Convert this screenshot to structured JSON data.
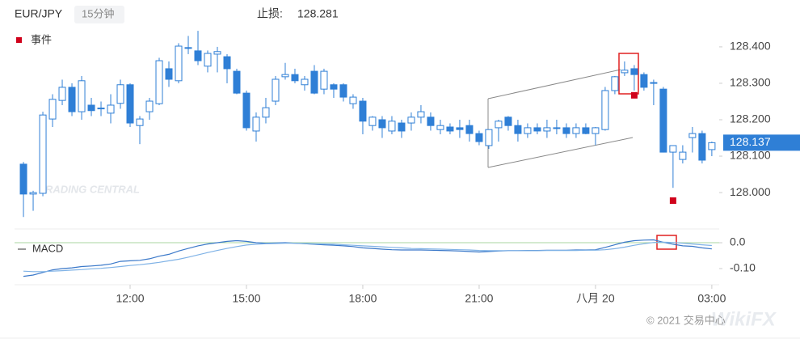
{
  "header": {
    "symbol": "EUR/JPY",
    "interval": "15分钟",
    "stop_loss_label": "止损:",
    "stop_loss": 128.281
  },
  "watermarks": [
    "TRADING CENTRAL",
    "WikiFX"
  ],
  "footer": "© 2021 交易中心",
  "chart_data": [
    {
      "type": "candlestick",
      "x": [
        9.25,
        9.5,
        9.75,
        10,
        10.25,
        10.5,
        10.75,
        11,
        11.25,
        11.5,
        11.75,
        12,
        12.25,
        12.5,
        12.75,
        13,
        13.25,
        13.5,
        13.75,
        14,
        14.25,
        14.5,
        14.75,
        15,
        15.25,
        15.5,
        15.75,
        16,
        16.25,
        16.5,
        16.75,
        17,
        17.25,
        17.5,
        17.75,
        18,
        18.25,
        18.5,
        18.75,
        19,
        19.25,
        19.5,
        19.75,
        20,
        20.25,
        20.5,
        20.75,
        21,
        21.25,
        21.5,
        21.75,
        22,
        22.25,
        22.5,
        22.75,
        23,
        23.25,
        23.5,
        23.75,
        24,
        24.25,
        24.5,
        24.75,
        25,
        25.25,
        25.5,
        25.75,
        26,
        26.25,
        26.5,
        26.75,
        27
      ],
      "open": [
        128.078,
        127.996,
        127.998,
        128.202,
        128.253,
        128.289,
        128.222,
        128.24,
        128.23,
        128.218,
        128.245,
        128.296,
        128.184,
        128.222,
        128.244,
        128.34,
        128.307,
        128.396,
        128.389,
        128.347,
        128.38,
        128.373,
        128.333,
        128.273,
        128.169,
        128.207,
        128.251,
        128.318,
        128.324,
        128.296,
        128.333,
        128.284,
        128.296,
        128.296,
        128.244,
        128.251,
        128.184,
        128.2,
        128.169,
        128.191,
        128.191,
        128.207,
        128.207,
        128.173,
        128.18,
        128.178,
        128.184,
        128.162,
        128.129,
        128.178,
        128.207,
        128.184,
        128.162,
        128.178,
        128.169,
        128.176,
        128.178,
        128.162,
        128.178,
        128.162,
        128.173,
        128.28,
        128.329,
        128.34,
        128.324,
        128.302,
        128.284,
        128.111,
        128.091,
        128.151,
        128.162,
        128.118
      ],
      "high": [
        128.084,
        128.005,
        128.222,
        128.27,
        128.31,
        128.3,
        128.32,
        128.26,
        128.25,
        128.27,
        128.31,
        128.3,
        128.21,
        128.26,
        128.37,
        128.36,
        128.41,
        128.43,
        128.444,
        128.39,
        128.4,
        128.38,
        128.34,
        128.28,
        128.22,
        128.26,
        128.32,
        128.356,
        128.34,
        128.32,
        128.35,
        128.34,
        128.3,
        128.3,
        128.27,
        128.26,
        128.21,
        128.21,
        128.21,
        128.2,
        128.22,
        128.24,
        128.22,
        128.2,
        128.19,
        128.2,
        128.2,
        128.17,
        128.17,
        128.2,
        128.21,
        128.2,
        128.19,
        128.19,
        128.2,
        128.2,
        128.19,
        128.19,
        128.19,
        128.18,
        128.29,
        128.32,
        128.36,
        128.35,
        128.33,
        128.31,
        128.29,
        128.13,
        128.13,
        128.18,
        128.17,
        128.14
      ],
      "low": [
        127.933,
        127.95,
        127.99,
        128.18,
        128.24,
        128.21,
        128.2,
        128.21,
        128.21,
        128.19,
        128.23,
        128.18,
        128.133,
        128.2,
        128.24,
        128.29,
        128.3,
        128.38,
        128.35,
        128.33,
        128.33,
        128.3,
        128.27,
        128.17,
        128.14,
        128.19,
        128.24,
        128.31,
        128.3,
        128.28,
        128.27,
        128.27,
        128.26,
        128.25,
        128.23,
        128.16,
        128.17,
        128.15,
        128.16,
        128.15,
        128.17,
        128.19,
        128.17,
        128.16,
        128.16,
        128.15,
        128.14,
        128.13,
        128.12,
        128.14,
        128.17,
        128.14,
        128.15,
        128.16,
        128.15,
        128.16,
        128.15,
        128.15,
        128.16,
        128.13,
        128.17,
        128.27,
        128.32,
        128.28,
        128.28,
        128.24,
        128.11,
        128.013,
        128.08,
        128.11,
        128.08,
        128.1
      ],
      "close": [
        127.996,
        128.0,
        128.213,
        128.256,
        128.289,
        128.222,
        128.307,
        128.225,
        128.232,
        128.24,
        128.296,
        128.191,
        128.202,
        128.251,
        128.362,
        128.311,
        128.402,
        128.398,
        128.362,
        128.382,
        128.387,
        128.34,
        128.273,
        128.178,
        128.207,
        128.233,
        128.311,
        128.324,
        128.307,
        128.311,
        128.273,
        128.333,
        128.284,
        128.262,
        128.262,
        128.196,
        128.207,
        128.178,
        128.196,
        128.169,
        128.207,
        128.222,
        128.184,
        128.184,
        128.169,
        128.173,
        128.162,
        128.14,
        128.173,
        128.196,
        128.184,
        128.162,
        128.178,
        128.169,
        128.178,
        128.178,
        128.162,
        128.178,
        128.162,
        128.178,
        128.28,
        128.318,
        128.336,
        128.324,
        128.289,
        128.3,
        128.111,
        128.129,
        128.111,
        128.162,
        128.089,
        128.137
      ],
      "up_color": "#2f7fd6",
      "down_color": "#2f7fd6",
      "events": {
        "name": "事件",
        "color": "#d0021b",
        "x": [
          25,
          26
        ],
        "values": [
          128.267,
          127.978
        ]
      },
      "xlim": [
        9.02,
        27.19
      ],
      "xticks": [
        {
          "value": 12,
          "label": "12:00"
        },
        {
          "value": 15,
          "label": "15:00"
        },
        {
          "value": 18,
          "label": "18:00"
        },
        {
          "value": 21,
          "label": "21:00"
        },
        {
          "value": 24,
          "label": "八月 20"
        },
        {
          "value": 27,
          "label": "03:00"
        }
      ],
      "ylim": [
        127.918,
        128.462
      ],
      "yticks": [
        {
          "value": 128.0,
          "label": "128.000"
        },
        {
          "value": 128.1,
          "label": "128.100"
        },
        {
          "value": 128.2,
          "label": "128.200"
        },
        {
          "value": 128.3,
          "label": "128.300"
        },
        {
          "value": 128.4,
          "label": "128.400"
        }
      ]
    },
    {
      "type": "line",
      "x": [
        9.25,
        9.5,
        9.75,
        10,
        10.25,
        10.5,
        10.75,
        11,
        11.25,
        11.5,
        11.75,
        12,
        12.25,
        12.5,
        12.75,
        13,
        13.25,
        13.5,
        13.75,
        14,
        14.25,
        14.5,
        14.75,
        15,
        15.25,
        15.5,
        15.75,
        16,
        16.25,
        16.5,
        16.75,
        17,
        17.25,
        17.5,
        17.75,
        18,
        18.25,
        18.5,
        18.75,
        19,
        19.25,
        19.5,
        19.75,
        20,
        20.25,
        20.5,
        20.75,
        21,
        21.25,
        21.5,
        21.75,
        22,
        22.25,
        22.5,
        22.75,
        23,
        23.25,
        23.5,
        23.75,
        24,
        24.25,
        24.5,
        24.75,
        25,
        25.25,
        25.5,
        25.75,
        26,
        26.25,
        26.5,
        26.75,
        27
      ],
      "series": [
        {
          "name": "MACD",
          "color": "#3a78c9",
          "values": [
            -0.13,
            -0.125,
            -0.115,
            -0.105,
            -0.1,
            -0.097,
            -0.092,
            -0.09,
            -0.087,
            -0.082,
            -0.072,
            -0.07,
            -0.068,
            -0.062,
            -0.052,
            -0.045,
            -0.032,
            -0.022,
            -0.012,
            -0.005,
            0.0,
            0.005,
            0.008,
            0.005,
            0.0,
            -0.002,
            -0.001,
            0.0,
            -0.002,
            -0.004,
            -0.006,
            -0.008,
            -0.01,
            -0.012,
            -0.015,
            -0.02,
            -0.022,
            -0.025,
            -0.027,
            -0.028,
            -0.028,
            -0.028,
            -0.029,
            -0.03,
            -0.031,
            -0.032,
            -0.034,
            -0.036,
            -0.034,
            -0.032,
            -0.031,
            -0.031,
            -0.03,
            -0.03,
            -0.029,
            -0.029,
            -0.029,
            -0.028,
            -0.028,
            -0.027,
            -0.018,
            -0.008,
            0.002,
            0.008,
            0.01,
            0.011,
            0.002,
            -0.006,
            -0.012,
            -0.014,
            -0.02,
            -0.024
          ]
        },
        {
          "color": "#7fb2e6",
          "values": [
            -0.11,
            -0.112,
            -0.112,
            -0.11,
            -0.108,
            -0.106,
            -0.104,
            -0.101,
            -0.099,
            -0.096,
            -0.092,
            -0.088,
            -0.085,
            -0.081,
            -0.076,
            -0.07,
            -0.064,
            -0.056,
            -0.047,
            -0.038,
            -0.03,
            -0.022,
            -0.015,
            -0.009,
            -0.006,
            -0.004,
            -0.003,
            -0.002,
            -0.002,
            -0.003,
            -0.004,
            -0.005,
            -0.006,
            -0.008,
            -0.01,
            -0.012,
            -0.014,
            -0.016,
            -0.018,
            -0.02,
            -0.022,
            -0.023,
            -0.024,
            -0.025,
            -0.026,
            -0.027,
            -0.028,
            -0.03,
            -0.031,
            -0.031,
            -0.031,
            -0.031,
            -0.031,
            -0.031,
            -0.03,
            -0.03,
            -0.03,
            -0.03,
            -0.029,
            -0.029,
            -0.027,
            -0.023,
            -0.017,
            -0.01,
            -0.004,
            0.001,
            0.002,
            0.001,
            -0.002,
            -0.005,
            -0.008,
            -0.011
          ]
        }
      ],
      "zero_line_color": "#a8d5a0",
      "xlim": [
        9.02,
        27.19
      ],
      "ylim": [
        -0.1625,
        0.047
      ],
      "yticks": [
        {
          "value": -0.1,
          "label": "-0.10"
        },
        {
          "value": 0,
          "label": "0.0"
        }
      ]
    }
  ]
}
